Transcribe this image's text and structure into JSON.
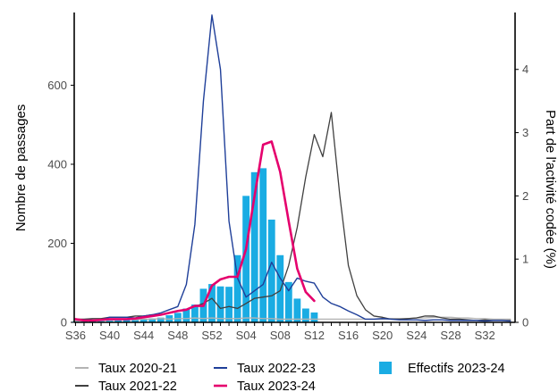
{
  "chart_data": {
    "type": "bar+line",
    "title": "",
    "ylabel_left": "Nombre de passages",
    "ylabel_right": "Part de l'activité codée (%)",
    "ylim_left": [
      0,
      784
    ],
    "ylim_right": [
      0,
      4.9
    ],
    "yticks_left": [
      0,
      200,
      400,
      600
    ],
    "yticks_right": [
      0,
      1,
      2,
      3,
      4
    ],
    "grid": false,
    "legend_position": "bottom",
    "x_categories": [
      "S36",
      "S37",
      "S38",
      "S39",
      "S40",
      "S41",
      "S42",
      "S43",
      "S44",
      "S45",
      "S46",
      "S47",
      "S48",
      "S49",
      "S50",
      "S51",
      "S52",
      "S01",
      "S02",
      "S03",
      "S04",
      "S05",
      "S06",
      "S07",
      "S08",
      "S09",
      "S10",
      "S11",
      "S12",
      "S13",
      "S14",
      "S15",
      "S16",
      "S17",
      "S18",
      "S19",
      "S20",
      "S21",
      "S22",
      "S23",
      "S24",
      "S25",
      "S26",
      "S27",
      "S28",
      "S29",
      "S30",
      "S31",
      "S32",
      "S33",
      "S34",
      "S35"
    ],
    "x_tick_labels": [
      "S36",
      "S40",
      "S44",
      "S48",
      "S52",
      "S04",
      "S08",
      "S12",
      "S16",
      "S20",
      "S24",
      "S28",
      "S32"
    ],
    "bars": {
      "name": "Effectifs 2023-24",
      "axis": "left",
      "color": "#1aace3",
      "values": [
        2,
        2,
        3,
        3,
        4,
        5,
        6,
        8,
        8,
        10,
        12,
        18,
        24,
        35,
        45,
        85,
        97,
        91,
        90,
        170,
        320,
        380,
        390,
        260,
        170,
        102,
        60,
        35,
        25,
        0,
        0,
        0,
        0,
        0,
        0,
        0,
        0,
        0,
        0,
        0,
        0,
        0,
        0,
        0,
        0,
        0,
        0,
        0,
        0,
        0,
        0,
        0
      ]
    },
    "series": [
      {
        "name": "Taux 2020-21",
        "axis": "right",
        "color": "#b3b3b3",
        "width": 1.3,
        "values": [
          0.02,
          0.03,
          0.02,
          0.03,
          0.04,
          0.04,
          0.05,
          0.04,
          0.05,
          0.05,
          0.06,
          0.05,
          0.06,
          0.06,
          0.07,
          0.06,
          0.07,
          0.06,
          0.06,
          0.06,
          0.07,
          0.07,
          0.06,
          0.06,
          0.05,
          0.05,
          0.05,
          0.05,
          0.05,
          0.05,
          0.05,
          0.05,
          0.05,
          0.05,
          0.05,
          0.05,
          0.05,
          0.06,
          0.06,
          0.06,
          0.07,
          0.07,
          0.08,
          0.08,
          0.08,
          0.07,
          0.07,
          0.06,
          0.06,
          0.05,
          0.05,
          0.05
        ]
      },
      {
        "name": "Taux 2021-22",
        "axis": "right",
        "color": "#404040",
        "width": 1.3,
        "values": [
          0.05,
          0.05,
          0.06,
          0.06,
          0.08,
          0.08,
          0.08,
          0.1,
          0.1,
          0.12,
          0.12,
          0.15,
          0.18,
          0.2,
          0.25,
          0.3,
          0.38,
          0.22,
          0.25,
          0.22,
          0.3,
          0.38,
          0.4,
          0.42,
          0.5,
          0.9,
          1.5,
          2.3,
          2.97,
          2.62,
          3.32,
          2.0,
          0.9,
          0.42,
          0.2,
          0.1,
          0.08,
          0.05,
          0.05,
          0.06,
          0.07,
          0.1,
          0.1,
          0.07,
          0.05,
          0.05,
          0.04,
          0.03,
          0.04,
          0.03,
          0.03,
          0.03
        ]
      },
      {
        "name": "Taux 2022-23",
        "axis": "right",
        "color": "#1f3f99",
        "width": 1.4,
        "values": [
          0.05,
          0.04,
          0.04,
          0.04,
          0.08,
          0.08,
          0.08,
          0.07,
          0.1,
          0.12,
          0.15,
          0.2,
          0.25,
          0.6,
          1.55,
          3.5,
          4.86,
          4.0,
          1.6,
          0.7,
          0.4,
          0.5,
          0.6,
          0.95,
          0.7,
          0.5,
          0.7,
          0.65,
          0.62,
          0.4,
          0.3,
          0.25,
          0.18,
          0.12,
          0.05,
          0.05,
          0.06,
          0.05,
          0.04,
          0.04,
          0.04,
          0.03,
          0.04,
          0.04,
          0.03,
          0.03,
          0.03,
          0.03,
          0.02,
          0.03,
          0.03,
          0.02
        ]
      },
      {
        "name": "Taux 2023-24",
        "axis": "right",
        "color": "#e5006d",
        "width": 2.6,
        "values": [
          0.05,
          0.03,
          0.03,
          0.04,
          0.05,
          0.05,
          0.05,
          0.06,
          0.08,
          0.1,
          0.12,
          0.15,
          0.18,
          0.2,
          0.26,
          0.26,
          0.58,
          0.68,
          0.72,
          0.72,
          1.16,
          2.0,
          2.81,
          2.86,
          2.38,
          1.6,
          0.85,
          0.48,
          0.34,
          null,
          null,
          null,
          null,
          null,
          null,
          null,
          null,
          null,
          null,
          null,
          null,
          null,
          null,
          null,
          null,
          null,
          null,
          null,
          null,
          null,
          null,
          null
        ]
      }
    ]
  },
  "legend": {
    "items": [
      {
        "label": "Taux 2020-21",
        "color": "#b3b3b3",
        "kind": "line"
      },
      {
        "label": "Taux 2021-22",
        "color": "#404040",
        "kind": "line"
      },
      {
        "label": "Taux 2022-23",
        "color": "#1f3f99",
        "kind": "line"
      },
      {
        "label": "Taux 2023-24",
        "color": "#e5006d",
        "kind": "line"
      },
      {
        "label": "Effectifs 2023-24",
        "color": "#1aace3",
        "kind": "bar"
      }
    ]
  }
}
